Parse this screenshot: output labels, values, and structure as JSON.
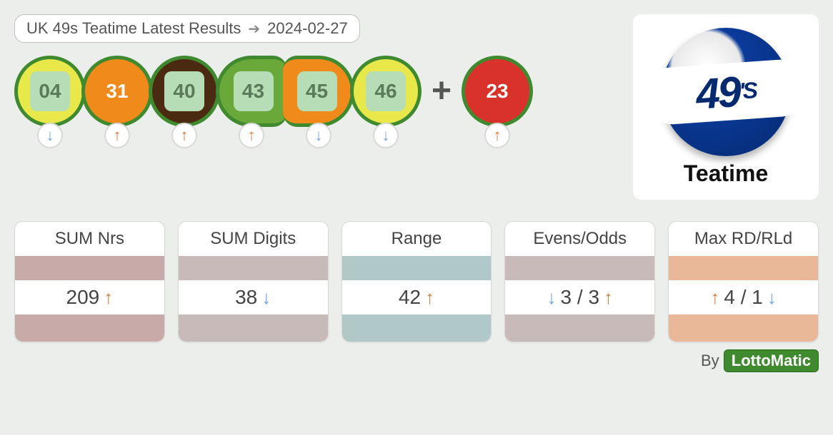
{
  "header": {
    "title": "UK 49s Teatime Latest Results",
    "date": "2024-02-27"
  },
  "colors": {
    "up": "#d97a3a",
    "down": "#6aa3e8",
    "ball_border": "#3f8a2f",
    "inner_chip": "#b7ddb7"
  },
  "balls": [
    {
      "num": "04",
      "bg": "#e8e84a",
      "inner_bg": "#b7ddb7",
      "text": "#5a7a5a",
      "trend": "down"
    },
    {
      "num": "31",
      "bg": "#f08a1a",
      "inner_bg": "#f08a1a",
      "text": "#ffffff",
      "trend": "up"
    },
    {
      "num": "40",
      "bg": "#4a2a10",
      "inner_bg": "#b7ddb7",
      "text": "#5a7a5a",
      "trend": "up"
    },
    {
      "num": "43",
      "bg": "#6aa83a",
      "inner_bg": "#b7ddb7",
      "text": "#5a7a5a",
      "trend": "up",
      "shape": "left-pill"
    },
    {
      "num": "45",
      "bg": "#f08a1a",
      "inner_bg": "#b7ddb7",
      "text": "#5a7a5a",
      "trend": "down",
      "shape": "right-pill"
    },
    {
      "num": "46",
      "bg": "#e8e84a",
      "inner_bg": "#b7ddb7",
      "text": "#5a7a5a",
      "trend": "down"
    }
  ],
  "bonus": {
    "num": "23",
    "bg": "#d8322a",
    "inner_bg": "#d8322a",
    "text": "#ffffff",
    "trend": "up"
  },
  "plus": "+",
  "logo": {
    "text": "49",
    "suffix": "'S",
    "label": "Teatime"
  },
  "stats": [
    {
      "title": "SUM Nrs",
      "value": "209",
      "arrows": [
        "",
        "up"
      ],
      "band": "#c8aaa8"
    },
    {
      "title": "SUM Digits",
      "value": "38",
      "arrows": [
        "",
        "down"
      ],
      "band": "#c8bab8"
    },
    {
      "title": "Range",
      "value": "42",
      "arrows": [
        "",
        "up"
      ],
      "band": "#b0c8c8"
    },
    {
      "title": "Evens/Odds",
      "value": "3 / 3",
      "arrows": [
        "down",
        "up"
      ],
      "band": "#c8bab8"
    },
    {
      "title": "Max RD/RLd",
      "value": "4 / 1",
      "arrows": [
        "up",
        "down"
      ],
      "band": "#e8b898"
    }
  ],
  "footer": {
    "by": "By",
    "brand": "LottoMatic"
  }
}
